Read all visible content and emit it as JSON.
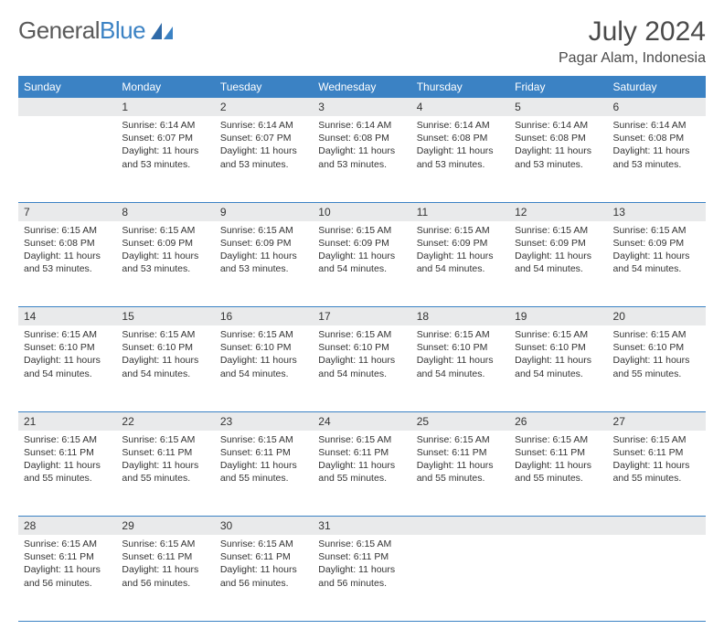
{
  "logo": {
    "textGray": "General",
    "textBlue": "Blue"
  },
  "title": "July 2024",
  "location": "Pagar Alam, Indonesia",
  "header_bg": "#3b82c4",
  "header_fg": "#ffffff",
  "daynum_bg": "#e9eaeb",
  "rule_color": "#3b82c4",
  "text_color": "#333333",
  "title_color": "#4a4a4a",
  "dayNames": [
    "Sunday",
    "Monday",
    "Tuesday",
    "Wednesday",
    "Thursday",
    "Friday",
    "Saturday"
  ],
  "weeks": [
    [
      null,
      {
        "d": "1",
        "sr": "Sunrise: 6:14 AM",
        "ss": "Sunset: 6:07 PM",
        "dl1": "Daylight: 11 hours",
        "dl2": "and 53 minutes."
      },
      {
        "d": "2",
        "sr": "Sunrise: 6:14 AM",
        "ss": "Sunset: 6:07 PM",
        "dl1": "Daylight: 11 hours",
        "dl2": "and 53 minutes."
      },
      {
        "d": "3",
        "sr": "Sunrise: 6:14 AM",
        "ss": "Sunset: 6:08 PM",
        "dl1": "Daylight: 11 hours",
        "dl2": "and 53 minutes."
      },
      {
        "d": "4",
        "sr": "Sunrise: 6:14 AM",
        "ss": "Sunset: 6:08 PM",
        "dl1": "Daylight: 11 hours",
        "dl2": "and 53 minutes."
      },
      {
        "d": "5",
        "sr": "Sunrise: 6:14 AM",
        "ss": "Sunset: 6:08 PM",
        "dl1": "Daylight: 11 hours",
        "dl2": "and 53 minutes."
      },
      {
        "d": "6",
        "sr": "Sunrise: 6:14 AM",
        "ss": "Sunset: 6:08 PM",
        "dl1": "Daylight: 11 hours",
        "dl2": "and 53 minutes."
      }
    ],
    [
      {
        "d": "7",
        "sr": "Sunrise: 6:15 AM",
        "ss": "Sunset: 6:08 PM",
        "dl1": "Daylight: 11 hours",
        "dl2": "and 53 minutes."
      },
      {
        "d": "8",
        "sr": "Sunrise: 6:15 AM",
        "ss": "Sunset: 6:09 PM",
        "dl1": "Daylight: 11 hours",
        "dl2": "and 53 minutes."
      },
      {
        "d": "9",
        "sr": "Sunrise: 6:15 AM",
        "ss": "Sunset: 6:09 PM",
        "dl1": "Daylight: 11 hours",
        "dl2": "and 53 minutes."
      },
      {
        "d": "10",
        "sr": "Sunrise: 6:15 AM",
        "ss": "Sunset: 6:09 PM",
        "dl1": "Daylight: 11 hours",
        "dl2": "and 54 minutes."
      },
      {
        "d": "11",
        "sr": "Sunrise: 6:15 AM",
        "ss": "Sunset: 6:09 PM",
        "dl1": "Daylight: 11 hours",
        "dl2": "and 54 minutes."
      },
      {
        "d": "12",
        "sr": "Sunrise: 6:15 AM",
        "ss": "Sunset: 6:09 PM",
        "dl1": "Daylight: 11 hours",
        "dl2": "and 54 minutes."
      },
      {
        "d": "13",
        "sr": "Sunrise: 6:15 AM",
        "ss": "Sunset: 6:09 PM",
        "dl1": "Daylight: 11 hours",
        "dl2": "and 54 minutes."
      }
    ],
    [
      {
        "d": "14",
        "sr": "Sunrise: 6:15 AM",
        "ss": "Sunset: 6:10 PM",
        "dl1": "Daylight: 11 hours",
        "dl2": "and 54 minutes."
      },
      {
        "d": "15",
        "sr": "Sunrise: 6:15 AM",
        "ss": "Sunset: 6:10 PM",
        "dl1": "Daylight: 11 hours",
        "dl2": "and 54 minutes."
      },
      {
        "d": "16",
        "sr": "Sunrise: 6:15 AM",
        "ss": "Sunset: 6:10 PM",
        "dl1": "Daylight: 11 hours",
        "dl2": "and 54 minutes."
      },
      {
        "d": "17",
        "sr": "Sunrise: 6:15 AM",
        "ss": "Sunset: 6:10 PM",
        "dl1": "Daylight: 11 hours",
        "dl2": "and 54 minutes."
      },
      {
        "d": "18",
        "sr": "Sunrise: 6:15 AM",
        "ss": "Sunset: 6:10 PM",
        "dl1": "Daylight: 11 hours",
        "dl2": "and 54 minutes."
      },
      {
        "d": "19",
        "sr": "Sunrise: 6:15 AM",
        "ss": "Sunset: 6:10 PM",
        "dl1": "Daylight: 11 hours",
        "dl2": "and 54 minutes."
      },
      {
        "d": "20",
        "sr": "Sunrise: 6:15 AM",
        "ss": "Sunset: 6:10 PM",
        "dl1": "Daylight: 11 hours",
        "dl2": "and 55 minutes."
      }
    ],
    [
      {
        "d": "21",
        "sr": "Sunrise: 6:15 AM",
        "ss": "Sunset: 6:11 PM",
        "dl1": "Daylight: 11 hours",
        "dl2": "and 55 minutes."
      },
      {
        "d": "22",
        "sr": "Sunrise: 6:15 AM",
        "ss": "Sunset: 6:11 PM",
        "dl1": "Daylight: 11 hours",
        "dl2": "and 55 minutes."
      },
      {
        "d": "23",
        "sr": "Sunrise: 6:15 AM",
        "ss": "Sunset: 6:11 PM",
        "dl1": "Daylight: 11 hours",
        "dl2": "and 55 minutes."
      },
      {
        "d": "24",
        "sr": "Sunrise: 6:15 AM",
        "ss": "Sunset: 6:11 PM",
        "dl1": "Daylight: 11 hours",
        "dl2": "and 55 minutes."
      },
      {
        "d": "25",
        "sr": "Sunrise: 6:15 AM",
        "ss": "Sunset: 6:11 PM",
        "dl1": "Daylight: 11 hours",
        "dl2": "and 55 minutes."
      },
      {
        "d": "26",
        "sr": "Sunrise: 6:15 AM",
        "ss": "Sunset: 6:11 PM",
        "dl1": "Daylight: 11 hours",
        "dl2": "and 55 minutes."
      },
      {
        "d": "27",
        "sr": "Sunrise: 6:15 AM",
        "ss": "Sunset: 6:11 PM",
        "dl1": "Daylight: 11 hours",
        "dl2": "and 55 minutes."
      }
    ],
    [
      {
        "d": "28",
        "sr": "Sunrise: 6:15 AM",
        "ss": "Sunset: 6:11 PM",
        "dl1": "Daylight: 11 hours",
        "dl2": "and 56 minutes."
      },
      {
        "d": "29",
        "sr": "Sunrise: 6:15 AM",
        "ss": "Sunset: 6:11 PM",
        "dl1": "Daylight: 11 hours",
        "dl2": "and 56 minutes."
      },
      {
        "d": "30",
        "sr": "Sunrise: 6:15 AM",
        "ss": "Sunset: 6:11 PM",
        "dl1": "Daylight: 11 hours",
        "dl2": "and 56 minutes."
      },
      {
        "d": "31",
        "sr": "Sunrise: 6:15 AM",
        "ss": "Sunset: 6:11 PM",
        "dl1": "Daylight: 11 hours",
        "dl2": "and 56 minutes."
      },
      null,
      null,
      null
    ]
  ]
}
